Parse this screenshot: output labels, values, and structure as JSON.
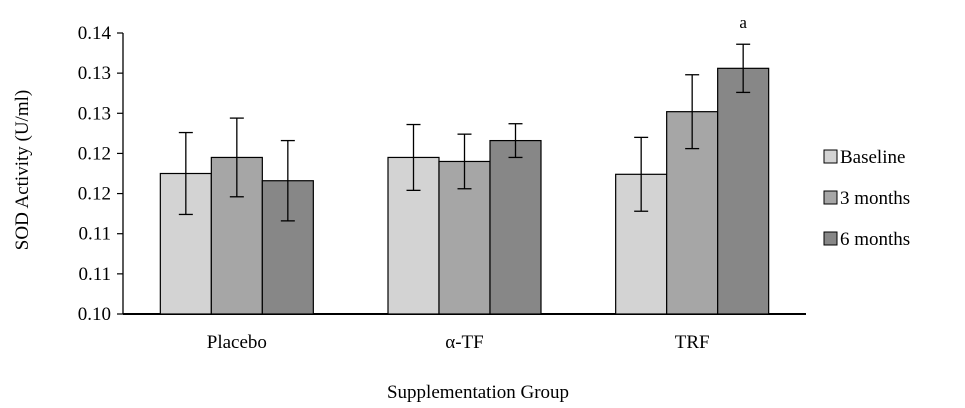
{
  "chart_data": {
    "type": "bar",
    "title": "",
    "xlabel": "Supplementation Group",
    "ylabel": "SOD Activity (U/ml)",
    "categories": [
      "Placebo",
      "α-TF",
      "TRF"
    ],
    "ytick_values": [
      0.1,
      0.105,
      0.11,
      0.115,
      0.12,
      0.125,
      0.13,
      0.135
    ],
    "yticks": [
      "0.10",
      "0.11",
      "0.11",
      "0.12",
      "0.12",
      "0.13",
      "0.13",
      "0.14"
    ],
    "ylim": [
      0.1,
      0.135
    ],
    "grid": false,
    "legend_position": "right",
    "series": [
      {
        "name": "Baseline",
        "color": "#d3d3d3",
        "values": [
          0.1175,
          0.1195,
          0.1174
        ],
        "errors": [
          0.0051,
          0.0041,
          0.0046
        ]
      },
      {
        "name": "3 months",
        "color": "#a6a6a6",
        "values": [
          0.1195,
          0.119,
          0.1252
        ],
        "errors": [
          0.0049,
          0.0034,
          0.0046
        ]
      },
      {
        "name": "6 months",
        "color": "#878787",
        "values": [
          0.1166,
          0.1216,
          0.1306
        ],
        "errors": [
          0.005,
          0.0021,
          0.003
        ]
      }
    ],
    "annotations": [
      {
        "category": "TRF",
        "series": "6 months",
        "text": "a"
      }
    ]
  }
}
